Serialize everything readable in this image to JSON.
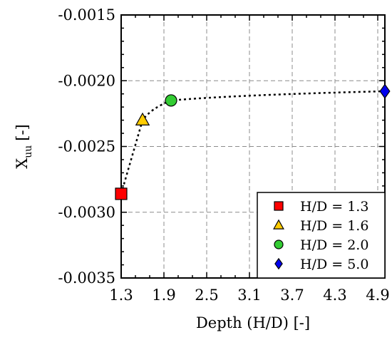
{
  "chart_data": {
    "type": "scatter",
    "title": "",
    "xlabel": "Depth (H/D) [-]",
    "ylabel": "X",
    "ylabel_sub": "uu",
    "ylabel_unit": "[-]",
    "xlim": [
      1.3,
      5.0
    ],
    "ylim": [
      -0.0035,
      -0.0015
    ],
    "xticks": [
      "1.3",
      "1.9",
      "2.5",
      "3.1",
      "3.7",
      "4.3",
      "4.9"
    ],
    "xtick_values": [
      1.3,
      1.9,
      2.5,
      3.1,
      3.7,
      4.3,
      4.9
    ],
    "yticks": [
      "-0.0015",
      "-0.0020",
      "-0.0025",
      "-0.0030",
      "-0.0035"
    ],
    "ytick_values": [
      -0.0015,
      -0.002,
      -0.0025,
      -0.003,
      -0.0035
    ],
    "grid": true,
    "legend_position": "bottom-right",
    "connecting_line": "dotted",
    "series": [
      {
        "name": "H/D = 1.3",
        "x": 1.3,
        "y": -0.00286,
        "marker": "square",
        "color": "#ff0000"
      },
      {
        "name": "H/D = 1.6",
        "x": 1.6,
        "y": -0.0023,
        "marker": "triangle",
        "color": "#ffcc00"
      },
      {
        "name": "H/D = 2.0",
        "x": 2.0,
        "y": -0.00215,
        "marker": "circle",
        "color": "#33cc33"
      },
      {
        "name": "H/D = 5.0",
        "x": 5.0,
        "y": -0.00208,
        "marker": "diamond",
        "color": "#0000ee"
      }
    ]
  }
}
